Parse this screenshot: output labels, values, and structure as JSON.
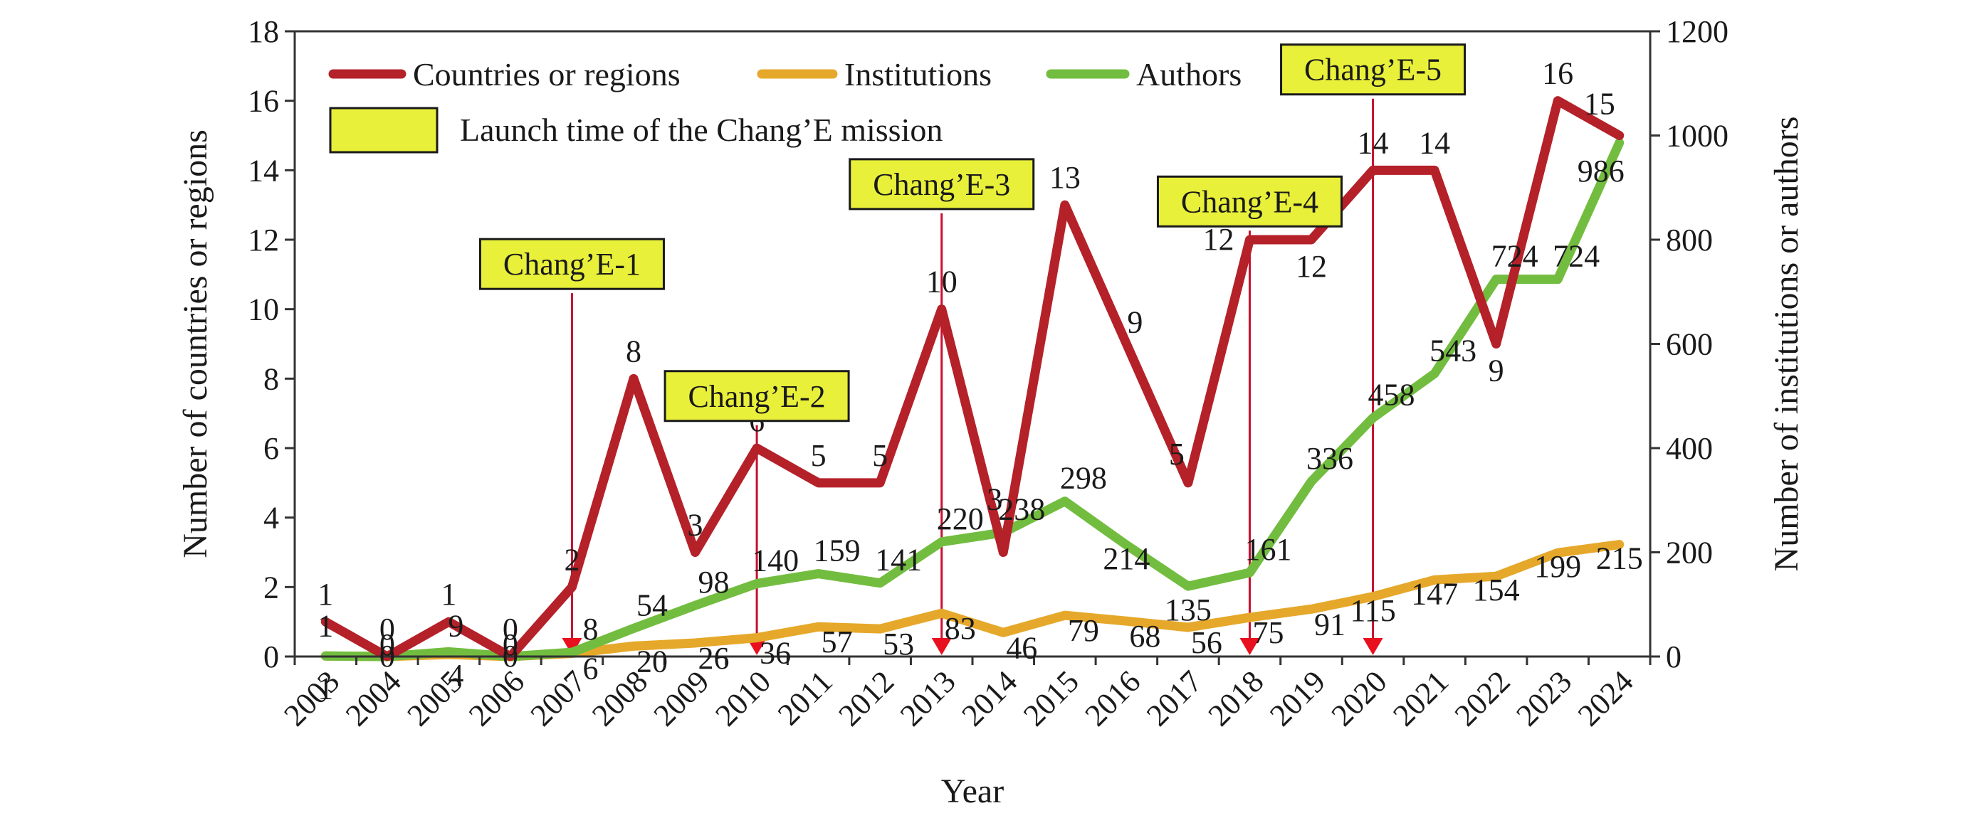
{
  "chart_data": {
    "type": "line",
    "xlabel": "Year",
    "ylabel_left": "Number of countries or regions",
    "ylabel_right": "Number of institutions or authors",
    "ylim_left": [
      0,
      18
    ],
    "ylim_right": [
      0,
      1200
    ],
    "yticks_left": [
      0,
      2,
      4,
      6,
      8,
      10,
      12,
      14,
      16,
      18
    ],
    "yticks_right": [
      0,
      200,
      400,
      600,
      800,
      1000,
      1200
    ],
    "grid": false,
    "legend_position": "top-left",
    "categories": [
      "2003",
      "2004",
      "2005",
      "2006",
      "2007",
      "2008",
      "2009",
      "2010",
      "2011",
      "2012",
      "2013",
      "2014",
      "2015",
      "2016",
      "2017",
      "2018",
      "2019",
      "2020",
      "2021",
      "2022",
      "2023",
      "2024"
    ],
    "series": [
      {
        "name": "Countries or regions",
        "axis": "left",
        "color": "#b52129",
        "values": [
          1,
          0,
          1,
          0,
          2,
          8,
          3,
          6,
          5,
          5,
          10,
          3,
          13,
          9,
          5,
          12,
          12,
          14,
          14,
          9,
          16,
          15
        ]
      },
      {
        "name": "Institutions",
        "axis": "right",
        "color": "#e6a82a",
        "values": [
          1,
          0,
          4,
          0,
          6,
          20,
          26,
          36,
          57,
          53,
          83,
          46,
          79,
          68,
          56,
          75,
          91,
          115,
          147,
          154,
          199,
          215
        ]
      },
      {
        "name": "Authors",
        "axis": "right",
        "color": "#72bd3f",
        "values": [
          1,
          0,
          9,
          0,
          8,
          54,
          98,
          140,
          159,
          141,
          220,
          238,
          298,
          214,
          135,
          161,
          336,
          458,
          543,
          724,
          724,
          986
        ]
      }
    ],
    "missions": [
      {
        "label": "Chang’E-1",
        "year": "2007"
      },
      {
        "label": "Chang’E-2",
        "year": "2010"
      },
      {
        "label": "Chang’E-3",
        "year": "2013"
      },
      {
        "label": "Chang’E-4",
        "year": "2018"
      },
      {
        "label": "Chang’E-5",
        "year": "2020"
      }
    ],
    "legend_mission_label": "Launch time of the Chang’E mission",
    "mission_box_color": "#e8f03a",
    "mission_line_color": "#c8102e"
  }
}
